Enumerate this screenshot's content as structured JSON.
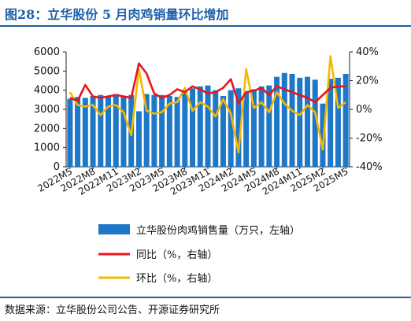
{
  "header": {
    "title": "图28：立华股份 5 月肉鸡销量环比增加"
  },
  "footer": {
    "source": "数据来源：立华股份公司公告、开源证券研究所"
  },
  "colors": {
    "bar": "#1f77c8",
    "yoy": "#e8141e",
    "mom": "#f5b800",
    "title": "#1d5fa8"
  },
  "chart_data": {
    "type": "bar+line",
    "title": "",
    "x": [
      "2022M5",
      "2022M6",
      "2022M7",
      "2022M8",
      "2022M9",
      "2022M10",
      "2022M11",
      "2022M12",
      "2023M1",
      "2023M2",
      "2023M3",
      "2023M4",
      "2023M5",
      "2023M6",
      "2023M7",
      "2023M8",
      "2023M9",
      "2023M10",
      "2023M11",
      "2023M12",
      "2024M1",
      "2024M2",
      "2024M3",
      "2024M4",
      "2024M5",
      "2024M6",
      "2024M7",
      "2024M8",
      "2024M9",
      "2024M10",
      "2024M11",
      "2024M12",
      "2025M1",
      "2025M2",
      "2025M3",
      "2025M4",
      "2025M5"
    ],
    "x_tick_labels": [
      "2022M5",
      "2022M8",
      "2022M11",
      "2023M2",
      "2023M5",
      "2023M8",
      "2023M11",
      "2024M2",
      "2024M5",
      "2024M8",
      "2024M11",
      "2025M2",
      "2025M5"
    ],
    "y_left": {
      "range": [
        0,
        6000
      ],
      "ticks": [
        0,
        1000,
        2000,
        3000,
        4000,
        5000,
        6000
      ],
      "tick_labels": [
        "0",
        "1000",
        "2000",
        "3000",
        "4000",
        "5000",
        "6000"
      ]
    },
    "y_right": {
      "range": [
        -40,
        40
      ],
      "ticks": [
        -40,
        -20,
        0,
        20,
        40
      ],
      "tick_labels": [
        "-40%",
        "-20%",
        "0%",
        "20%",
        "40%"
      ]
    },
    "series": [
      {
        "name": "立华股份肉鸡销售量（万只，左轴）",
        "type": "bar",
        "axis": "left",
        "values": [
          3550,
          3650,
          3600,
          3700,
          3750,
          3700,
          3800,
          3700,
          3750,
          2900,
          3800,
          3750,
          3750,
          3700,
          3650,
          3850,
          4100,
          4200,
          4250,
          4000,
          3700,
          4000,
          4100,
          3950,
          4050,
          4200,
          4250,
          4700,
          4900,
          4850,
          4650,
          4700,
          4550,
          3300,
          4600,
          4650,
          4850
        ]
      },
      {
        "name": "同比（%，右轴）",
        "type": "line",
        "axis": "right",
        "values": [
          8,
          6,
          17,
          9,
          8,
          9,
          10,
          9,
          8,
          32,
          25,
          11,
          8,
          10,
          14,
          12,
          16,
          14,
          11,
          12,
          15,
          21,
          4,
          12,
          13,
          15,
          10,
          16,
          14,
          12,
          10,
          8,
          5,
          10,
          15,
          16,
          16
        ]
      },
      {
        "name": "环比（%，右轴）",
        "type": "line",
        "axis": "right",
        "values": [
          12,
          3,
          2,
          3,
          -4,
          2,
          3,
          -2,
          -18,
          28,
          -1,
          -3,
          -2,
          4,
          5,
          15,
          -1,
          5,
          2,
          -5,
          7,
          -3,
          -30,
          28,
          1,
          5,
          -2,
          12,
          4,
          -1,
          -4,
          3,
          -2,
          -28,
          37,
          1,
          5
        ]
      }
    ],
    "legend": {
      "position": "bottom",
      "labels": [
        "立华股份肉鸡销售量（万只，左轴）",
        "同比（%，右轴）",
        "环比（%，右轴）"
      ]
    },
    "grid": false
  }
}
